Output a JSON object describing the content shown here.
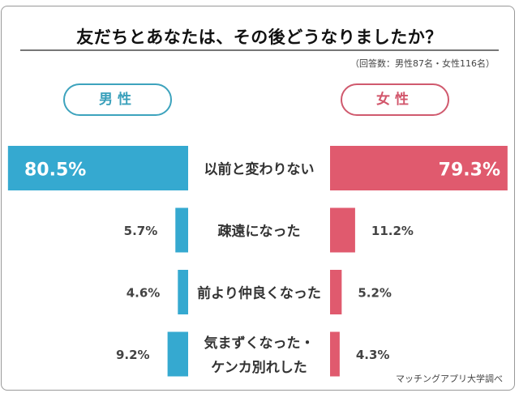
{
  "chart_data": {
    "type": "bar",
    "layout": "butterfly (back-to-back horizontal bars)",
    "title": "友だちとあなたは、その後どうなりましたか？",
    "note": "（回答数：男性87名・女性116名）",
    "categories": [
      "以前と変わりない",
      "疎遠になった",
      "前より仲良くなった",
      "気まずくなった・\nケンカ別れした"
    ],
    "series": [
      {
        "name": "男性",
        "values": [
          80.5,
          5.7,
          4.6,
          9.2
        ],
        "color": "#35a9d0",
        "pill_color": "#3da3bd"
      },
      {
        "name": "女性",
        "values": [
          79.3,
          11.2,
          5.2,
          4.3
        ],
        "color": "#e05a6e",
        "pill_color": "#d05a6e"
      }
    ],
    "unit": "%",
    "source": "マッチングアプリ大学調べ"
  }
}
